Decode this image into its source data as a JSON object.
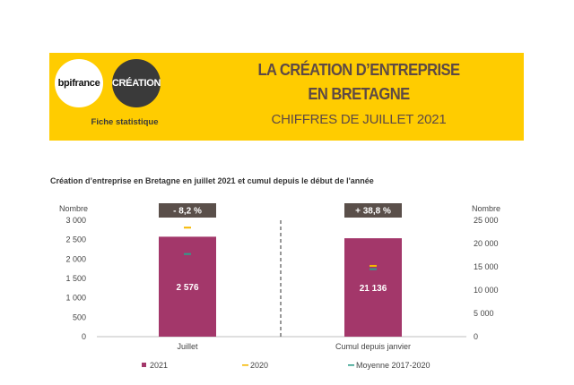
{
  "header": {
    "logo_bpi": "bpifrance",
    "logo_creation": "CRÉATION",
    "fiche": "Fiche statistique",
    "title_line1": "LA CRÉATION D’ENTREPRISE",
    "title_line2": "EN BRETAGNE",
    "subtitle": "CHIFFRES DE JUILLET 2021",
    "banner_color": "#ffcc00"
  },
  "chart_data": {
    "type": "bar",
    "title": "Création d’entreprise en Bretagne en juillet 2021 et cumul depuis le début de l'année",
    "categories": [
      "Juillet",
      "Cumul depuis janvier"
    ],
    "left_axis": {
      "label": "Nombre",
      "range": [
        0,
        3000
      ],
      "ticks": [
        0,
        500,
        1000,
        1500,
        2000,
        2500,
        3000
      ],
      "tick_labels": [
        "0",
        "500",
        "1 000",
        "1 500",
        "2 000",
        "2 500",
        "3 000"
      ]
    },
    "right_axis": {
      "label": "Nombre",
      "range": [
        0,
        25000
      ],
      "ticks": [
        0,
        5000,
        10000,
        15000,
        20000,
        25000
      ],
      "tick_labels": [
        "0",
        "5 000",
        "10 000",
        "15 000",
        "20 000",
        "25 000"
      ]
    },
    "series": [
      {
        "name": "2021",
        "type": "bar",
        "color": "#a3376a",
        "values": [
          2576,
          21136
        ],
        "value_labels": [
          "2 576",
          "21 136"
        ]
      },
      {
        "name": "2020",
        "type": "marker",
        "color": "#f5b800",
        "values": [
          2810,
          15200
        ]
      },
      {
        "name": "Moyenne 2017-2020",
        "type": "marker",
        "color": "#2e9e8a",
        "values": [
          2130,
          14500
        ]
      }
    ],
    "changes": [
      "- 8,2 %",
      "+ 38,8 %"
    ],
    "change_box_color": "#5a4f4a"
  }
}
